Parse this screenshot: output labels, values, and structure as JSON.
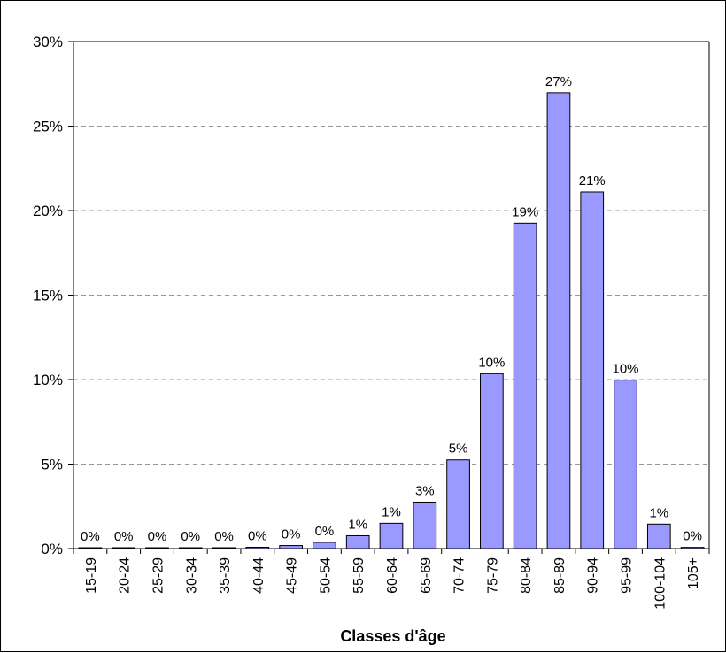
{
  "chart_data": {
    "type": "bar",
    "title": "",
    "xlabel": "Classes d'âge",
    "ylabel": "",
    "ylim": [
      0,
      30
    ],
    "y_ticks": [
      "0%",
      "5%",
      "10%",
      "15%",
      "20%",
      "25%",
      "30%"
    ],
    "y_tick_values": [
      0,
      5,
      10,
      15,
      20,
      25,
      30
    ],
    "grid": "horizontal dashed",
    "legend": "none",
    "categories": [
      "15-19",
      "20-24",
      "25-29",
      "30-34",
      "35-39",
      "40-44",
      "45-49",
      "50-54",
      "55-59",
      "60-64",
      "65-69",
      "70-74",
      "75-79",
      "80-84",
      "85-89",
      "90-94",
      "95-99",
      "100-104",
      "105+"
    ],
    "values": [
      0.0,
      0.02,
      0.01,
      0.01,
      0.03,
      0.08,
      0.18,
      0.37,
      0.76,
      1.5,
      2.75,
      5.25,
      10.35,
      19.25,
      26.97,
      21.1,
      9.97,
      1.45,
      0.07
    ],
    "data_labels": [
      "0%",
      "0%",
      "0%",
      "0%",
      "0%",
      "0%",
      "0%",
      "0%",
      "1%",
      "1%",
      "3%",
      "5%",
      "10%",
      "19%",
      "27%",
      "21%",
      "10%",
      "1%",
      "0%"
    ],
    "colors": {
      "bar_fill": "#9999FF",
      "bar_stroke": "#000000",
      "grid": "#999999",
      "axis": "#808080"
    }
  }
}
